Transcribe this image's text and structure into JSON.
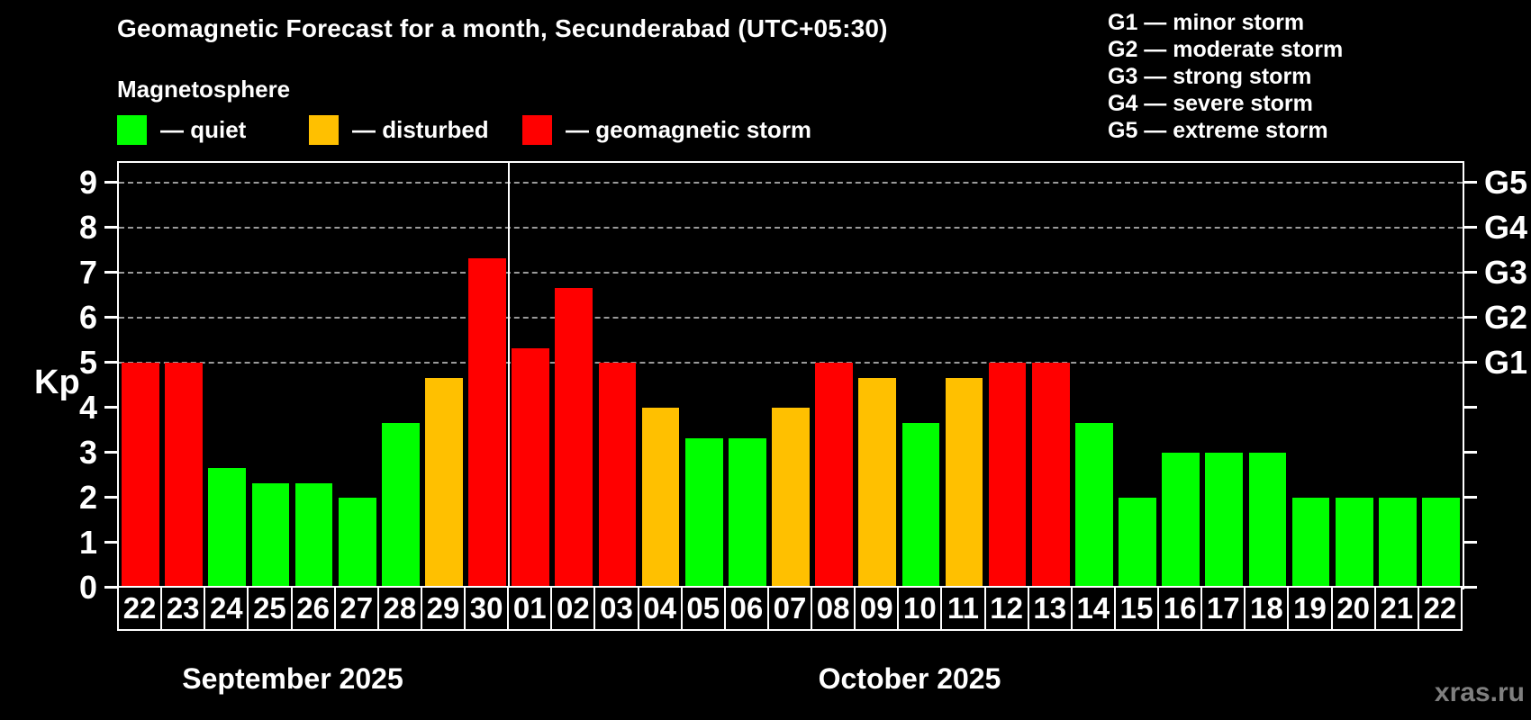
{
  "title": "Geomagnetic Forecast for a month, Secunderabad (UTC+05:30)",
  "legend": {
    "heading": "Magnetosphere",
    "items": [
      {
        "key": "quiet",
        "label": "— quiet",
        "color": "#00ff00"
      },
      {
        "key": "disturbed",
        "label": "— disturbed",
        "color": "#ffc000"
      },
      {
        "key": "storm",
        "label": "— geomagnetic storm",
        "color": "#ff0000"
      }
    ]
  },
  "g_legend": [
    "G1 — minor storm",
    "G2 — moderate storm",
    "G3 — strong storm",
    "G4 — severe storm",
    "G5 — extreme storm"
  ],
  "colors": {
    "quiet": "#00ff00",
    "disturbed": "#ffc000",
    "storm": "#ff0000",
    "grid": "#9a9a9a",
    "axis": "#ffffff",
    "background": "#000000",
    "watermark": "#7f7f7f"
  },
  "axes": {
    "y_label": "Kp",
    "y_ticks": [
      0,
      1,
      2,
      3,
      4,
      5,
      6,
      7,
      8,
      9
    ],
    "g_ticks": [
      {
        "kp": 5,
        "label": "G1"
      },
      {
        "kp": 6,
        "label": "G2"
      },
      {
        "kp": 7,
        "label": "G3"
      },
      {
        "kp": 8,
        "label": "G4"
      },
      {
        "kp": 9,
        "label": "G5"
      }
    ]
  },
  "watermark": "xras.ru",
  "chart_data": {
    "type": "bar",
    "title": "Geomagnetic Forecast for a month, Secunderabad (UTC+05:30)",
    "ylabel": "Kp",
    "ylim": [
      0,
      9.5
    ],
    "gridlines_at": [
      5,
      6,
      7,
      8,
      9
    ],
    "grid_style": "dashed horizontal, only at Kp 5-9 (G1-G5 levels)",
    "legend_position": "top",
    "months": [
      {
        "label": "September 2025",
        "days": 9
      },
      {
        "label": "October 2025",
        "days": 22
      }
    ],
    "categories": [
      "22",
      "23",
      "24",
      "25",
      "26",
      "27",
      "28",
      "29",
      "30",
      "01",
      "02",
      "03",
      "04",
      "05",
      "06",
      "07",
      "08",
      "09",
      "10",
      "11",
      "12",
      "13",
      "14",
      "15",
      "16",
      "17",
      "18",
      "19",
      "20",
      "21",
      "22"
    ],
    "values": [
      5,
      5,
      2.67,
      2.33,
      2.33,
      2,
      3.67,
      4.67,
      7.33,
      5.33,
      6.67,
      5,
      4,
      3.33,
      3.33,
      4,
      5,
      4.67,
      3.67,
      4.67,
      5,
      5,
      3.67,
      2,
      3,
      3,
      3,
      2,
      2,
      2,
      2
    ],
    "statuses": [
      "storm",
      "storm",
      "quiet",
      "quiet",
      "quiet",
      "quiet",
      "quiet",
      "disturbed",
      "storm",
      "storm",
      "storm",
      "storm",
      "disturbed",
      "quiet",
      "quiet",
      "disturbed",
      "storm",
      "disturbed",
      "quiet",
      "disturbed",
      "storm",
      "storm",
      "quiet",
      "quiet",
      "quiet",
      "quiet",
      "quiet",
      "quiet",
      "quiet",
      "quiet",
      "quiet"
    ]
  }
}
